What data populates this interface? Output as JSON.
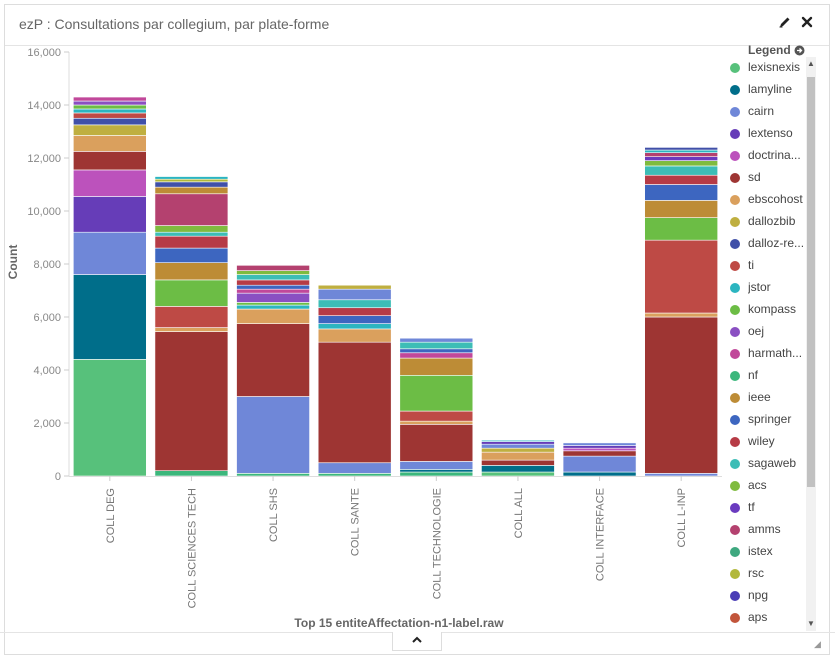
{
  "panel": {
    "title": "ezP : Consultations par collegium, par plate-forme",
    "edit_icon": "pencil-icon",
    "close_icon": "close-icon"
  },
  "legend": {
    "title": "Legend",
    "toggle_icon": "arrow-circle-right-icon",
    "items": [
      {
        "label": "lexisnexis",
        "color": "#57c17b"
      },
      {
        "label": "lamyline",
        "color": "#006e8a"
      },
      {
        "label": "cairn",
        "color": "#6f87d8"
      },
      {
        "label": "lextenso",
        "color": "#663db8"
      },
      {
        "label": "doctrina...",
        "color": "#bc52bc"
      },
      {
        "label": "sd",
        "color": "#9e3533"
      },
      {
        "label": "ebscohost",
        "color": "#daa05d"
      },
      {
        "label": "dallozbib",
        "color": "#bfaf40"
      },
      {
        "label": "dalloz-re...",
        "color": "#4050a8"
      },
      {
        "label": "ti",
        "color": "#be4a45"
      },
      {
        "label": "jstor",
        "color": "#2cb5c0"
      },
      {
        "label": "kompass",
        "color": "#6cbd45"
      },
      {
        "label": "oej",
        "color": "#8a4fc2"
      },
      {
        "label": "harmath...",
        "color": "#c1489a"
      },
      {
        "label": "nf",
        "color": "#3cb77c"
      },
      {
        "label": "ieee",
        "color": "#bd8c36"
      },
      {
        "label": "springer",
        "color": "#3d66c0"
      },
      {
        "label": "wiley",
        "color": "#b63b46"
      },
      {
        "label": "sagaweb",
        "color": "#3dbdb6"
      },
      {
        "label": "acs",
        "color": "#7fbb3f"
      },
      {
        "label": "tf",
        "color": "#6a3bbf"
      },
      {
        "label": "amms",
        "color": "#b4416f"
      },
      {
        "label": "istex",
        "color": "#3ea87f"
      },
      {
        "label": "rsc",
        "color": "#b2b83b"
      },
      {
        "label": "npg",
        "color": "#4a3db6"
      },
      {
        "label": "aps",
        "color": "#c2553b"
      }
    ]
  },
  "chart_data": {
    "type": "bar",
    "stacked": true,
    "ylabel": "Count",
    "xlabel": "Top 15 entiteAffectation-n1-label.raw",
    "ylim": [
      0,
      16000
    ],
    "yticks": [
      "0",
      "2,000",
      "4,000",
      "6,000",
      "8,000",
      "10,000",
      "12,000",
      "14,000",
      "16,000"
    ],
    "categories": [
      "COLL DEG",
      "COLL SCIENCES TECH",
      "COLL SHS",
      "COLL SANTE",
      "COLL TECHNOLOGIE",
      "COLL ALL",
      "COLL INTERFACE",
      "COLL L-INP"
    ],
    "stacks": [
      [
        {
          "series": "lexisnexis",
          "value": 4400
        },
        {
          "series": "lamyline",
          "value": 3200
        },
        {
          "series": "cairn",
          "value": 1600
        },
        {
          "series": "lextenso",
          "value": 1350
        },
        {
          "series": "doctrina...",
          "value": 1000
        },
        {
          "series": "sd",
          "value": 700
        },
        {
          "series": "ebscohost",
          "value": 600
        },
        {
          "series": "dallozbib",
          "value": 400
        },
        {
          "series": "dalloz-re...",
          "value": 250
        },
        {
          "series": "ti",
          "value": 200
        },
        {
          "series": "jstor",
          "value": 150
        },
        {
          "series": "kompass",
          "value": 150
        },
        {
          "series": "oej",
          "value": 150
        },
        {
          "series": "harmath...",
          "value": 150
        }
      ],
      [
        {
          "series": "nf",
          "value": 200
        },
        {
          "series": "sd",
          "value": 5250
        },
        {
          "series": "ebscohost",
          "value": 150
        },
        {
          "series": "ti",
          "value": 800
        },
        {
          "series": "kompass",
          "value": 1000
        },
        {
          "series": "ieee",
          "value": 650
        },
        {
          "series": "springer",
          "value": 550
        },
        {
          "series": "wiley",
          "value": 450
        },
        {
          "series": "sagaweb",
          "value": 150
        },
        {
          "series": "acs",
          "value": 250
        },
        {
          "series": "amms",
          "value": 1200
        },
        {
          "series": "ieee",
          "value": 250
        },
        {
          "series": "dalloz-re...",
          "value": 200
        },
        {
          "series": "rsc",
          "value": 100
        },
        {
          "series": "jstor",
          "value": 100
        }
      ],
      [
        {
          "series": "nf",
          "value": 100
        },
        {
          "series": "cairn",
          "value": 2900
        },
        {
          "series": "sd",
          "value": 2750
        },
        {
          "series": "ebscohost",
          "value": 550
        },
        {
          "series": "jstor",
          "value": 150
        },
        {
          "series": "kompass",
          "value": 100
        },
        {
          "series": "oej",
          "value": 350
        },
        {
          "series": "harmath...",
          "value": 150
        },
        {
          "series": "springer",
          "value": 150
        },
        {
          "series": "wiley",
          "value": 200
        },
        {
          "series": "sagaweb",
          "value": 200
        },
        {
          "series": "acs",
          "value": 150
        },
        {
          "series": "amms",
          "value": 200
        }
      ],
      [
        {
          "series": "nf",
          "value": 100
        },
        {
          "series": "cairn",
          "value": 400
        },
        {
          "series": "sd",
          "value": 4550
        },
        {
          "series": "ebscohost",
          "value": 500
        },
        {
          "series": "jstor",
          "value": 200
        },
        {
          "series": "springer",
          "value": 300
        },
        {
          "series": "wiley",
          "value": 300
        },
        {
          "series": "sagaweb",
          "value": 300
        },
        {
          "series": "cairn",
          "value": 400
        },
        {
          "series": "dallozbib",
          "value": 150
        }
      ],
      [
        {
          "series": "nf",
          "value": 150
        },
        {
          "series": "lamyline",
          "value": 100
        },
        {
          "series": "cairn",
          "value": 300
        },
        {
          "series": "sd",
          "value": 1400
        },
        {
          "series": "ebscohost",
          "value": 120
        },
        {
          "series": "ti",
          "value": 380
        },
        {
          "series": "kompass",
          "value": 1350
        },
        {
          "series": "ieee",
          "value": 650
        },
        {
          "series": "harmath...",
          "value": 200
        },
        {
          "series": "springer",
          "value": 150
        },
        {
          "series": "sagaweb",
          "value": 250
        },
        {
          "series": "cairn",
          "value": 150
        }
      ],
      [
        {
          "series": "lexisnexis",
          "value": 150
        },
        {
          "series": "lamyline",
          "value": 250
        },
        {
          "series": "sd",
          "value": 200
        },
        {
          "series": "ebscohost",
          "value": 300
        },
        {
          "series": "dallozbib",
          "value": 150
        },
        {
          "series": "cairn",
          "value": 150
        },
        {
          "series": "lextenso",
          "value": 100
        },
        {
          "series": "jstor",
          "value": 50
        }
      ],
      [
        {
          "series": "lamyline",
          "value": 150
        },
        {
          "series": "cairn",
          "value": 600
        },
        {
          "series": "sd",
          "value": 200
        },
        {
          "series": "doctrina...",
          "value": 100
        },
        {
          "series": "lextenso",
          "value": 100
        },
        {
          "series": "cairn",
          "value": 100
        }
      ],
      [
        {
          "series": "cairn",
          "value": 100
        },
        {
          "series": "sd",
          "value": 5900
        },
        {
          "series": "ebscohost",
          "value": 150
        },
        {
          "series": "ti",
          "value": 2750
        },
        {
          "series": "kompass",
          "value": 850
        },
        {
          "series": "ieee",
          "value": 650
        },
        {
          "series": "springer",
          "value": 600
        },
        {
          "series": "wiley",
          "value": 350
        },
        {
          "series": "sagaweb",
          "value": 350
        },
        {
          "series": "acs",
          "value": 200
        },
        {
          "series": "tf",
          "value": 150
        },
        {
          "series": "amms",
          "value": 150
        },
        {
          "series": "jstor",
          "value": 100
        },
        {
          "series": "dalloz-re...",
          "value": 100
        }
      ]
    ]
  }
}
